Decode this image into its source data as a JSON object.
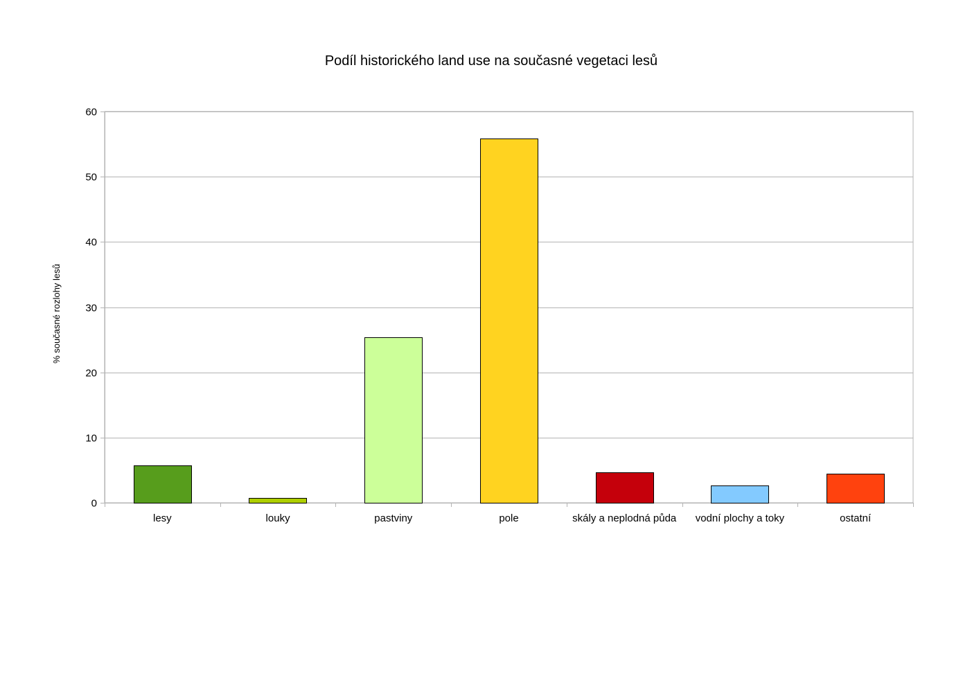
{
  "chart_data": {
    "type": "bar",
    "title": "Podíl historického land use na současné vegetaci lesů",
    "xlabel": "",
    "ylabel": "% současné rozlohy lesů",
    "ylim": [
      0,
      60
    ],
    "yticks": [
      0,
      10,
      20,
      30,
      40,
      50,
      60
    ],
    "grid": true,
    "legend": "none",
    "categories": [
      "lesy",
      "louky",
      "pastviny",
      "pole",
      "skály a neplodná půda",
      "vodní plochy a toky",
      "ostatní"
    ],
    "values": [
      5.7,
      0.7,
      25.4,
      55.9,
      4.7,
      2.7,
      4.5
    ],
    "colors": [
      "#579d1c",
      "#aecf00",
      "#ccff99",
      "#ffd320",
      "#c5000b",
      "#83caff",
      "#ff420e"
    ]
  }
}
